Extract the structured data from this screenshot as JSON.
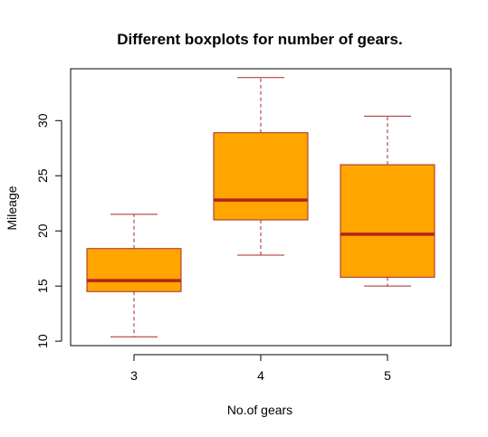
{
  "chart_data": {
    "type": "boxplot",
    "title": "Different boxplots for number of gears.",
    "xlabel": "No.of gears",
    "ylabel": "Mileage",
    "categories": [
      "3",
      "4",
      "5"
    ],
    "boxes": [
      {
        "category": "3",
        "whisker_low": 10.4,
        "q1": 14.5,
        "median": 15.5,
        "q3": 18.4,
        "whisker_high": 21.5
      },
      {
        "category": "4",
        "whisker_low": 17.8,
        "q1": 21.0,
        "median": 22.8,
        "q3": 28.9,
        "whisker_high": 33.9
      },
      {
        "category": "5",
        "whisker_low": 15.0,
        "q1": 15.8,
        "median": 19.7,
        "q3": 26.0,
        "whisker_high": 30.4
      }
    ],
    "ylim": [
      9.6,
      34.7
    ],
    "yticks": [
      10,
      15,
      20,
      25,
      30
    ],
    "box_fill": "#FFA500",
    "border_color": "#A52A2A",
    "median_color": "#B22222",
    "grid": false,
    "legend": "none"
  }
}
